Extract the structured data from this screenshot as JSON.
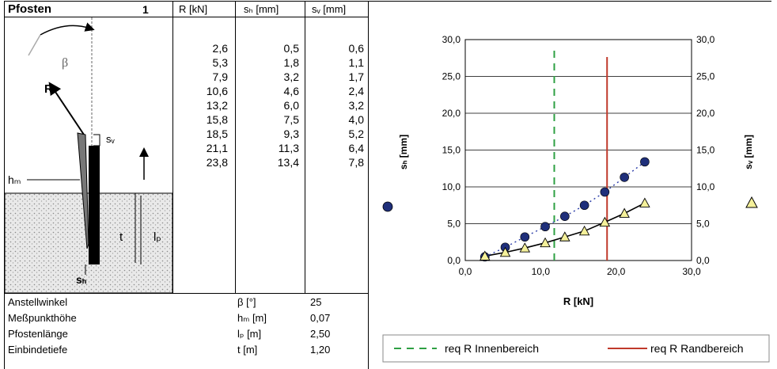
{
  "table": {
    "title": "Pfosten",
    "number": "1",
    "col_r": "R [kN]",
    "col_sh": "sₕ [mm]",
    "col_sv": "sᵥ [mm]",
    "r_values": [
      "2,6",
      "5,3",
      "7,9",
      "10,6",
      "13,2",
      "15,8",
      "18,5",
      "21,1",
      "23,8"
    ],
    "sh_values": [
      "0,5",
      "1,8",
      "3,2",
      "4,6",
      "6,0",
      "7,5",
      "9,3",
      "11,3",
      "13,4"
    ],
    "sv_values": [
      "0,6",
      "1,1",
      "1,7",
      "2,4",
      "3,2",
      "4,0",
      "5,2",
      "6,4",
      "7,8"
    ]
  },
  "diagram": {
    "beta": "β",
    "r": "R",
    "sv": "sᵥ",
    "hm": "hₘ",
    "t": "t",
    "lp": "lₚ",
    "sh": "sₕ"
  },
  "params": [
    {
      "label": "Anstellwinkel",
      "unit": "β [°]",
      "value": "25"
    },
    {
      "label": "Meßpunkthöhe",
      "unit": "hₘ [m]",
      "value": "0,07"
    },
    {
      "label": "Pfostenlänge",
      "unit": "lₚ [m]",
      "value": "2,50"
    },
    {
      "label": "Einbindetiefe",
      "unit": "t [m]",
      "value": "1,20"
    }
  ],
  "chart_data": {
    "type": "scatter",
    "xlabel": "R [kN]",
    "ylabel_left": "sₕ [mm]",
    "ylabel_right": "sᵥ [mm]",
    "xlim": [
      0,
      30
    ],
    "ylim": [
      0,
      30
    ],
    "x_ticks": [
      "0,0",
      "10,0",
      "20,0",
      "30,0"
    ],
    "y_ticks": [
      "0,0",
      "5,0",
      "10,0",
      "15,0",
      "20,0",
      "25,0",
      "30,0"
    ],
    "grid": "horizontal",
    "series": [
      {
        "name": "sₕ",
        "marker": "circle",
        "color": "#1f2f7a",
        "x": [
          2.6,
          5.3,
          7.9,
          10.6,
          13.2,
          15.8,
          18.5,
          21.1,
          23.8
        ],
        "y": [
          0.5,
          1.8,
          3.2,
          4.6,
          6.0,
          7.5,
          9.3,
          11.3,
          13.4
        ]
      },
      {
        "name": "sᵥ",
        "marker": "triangle",
        "color": "#f4f09a",
        "x": [
          2.6,
          5.3,
          7.9,
          10.6,
          13.2,
          15.8,
          18.5,
          21.1,
          23.8
        ],
        "y": [
          0.6,
          1.1,
          1.7,
          2.4,
          3.2,
          4.0,
          5.2,
          6.4,
          7.8
        ]
      }
    ],
    "vlines": [
      {
        "name": "req R Innenbereich",
        "x": 11.8,
        "color": "#2ea043",
        "style": "dashed"
      },
      {
        "name": "req R Randbereich",
        "x": 18.8,
        "color": "#c0392b",
        "style": "solid"
      }
    ],
    "legend": "bottom"
  }
}
